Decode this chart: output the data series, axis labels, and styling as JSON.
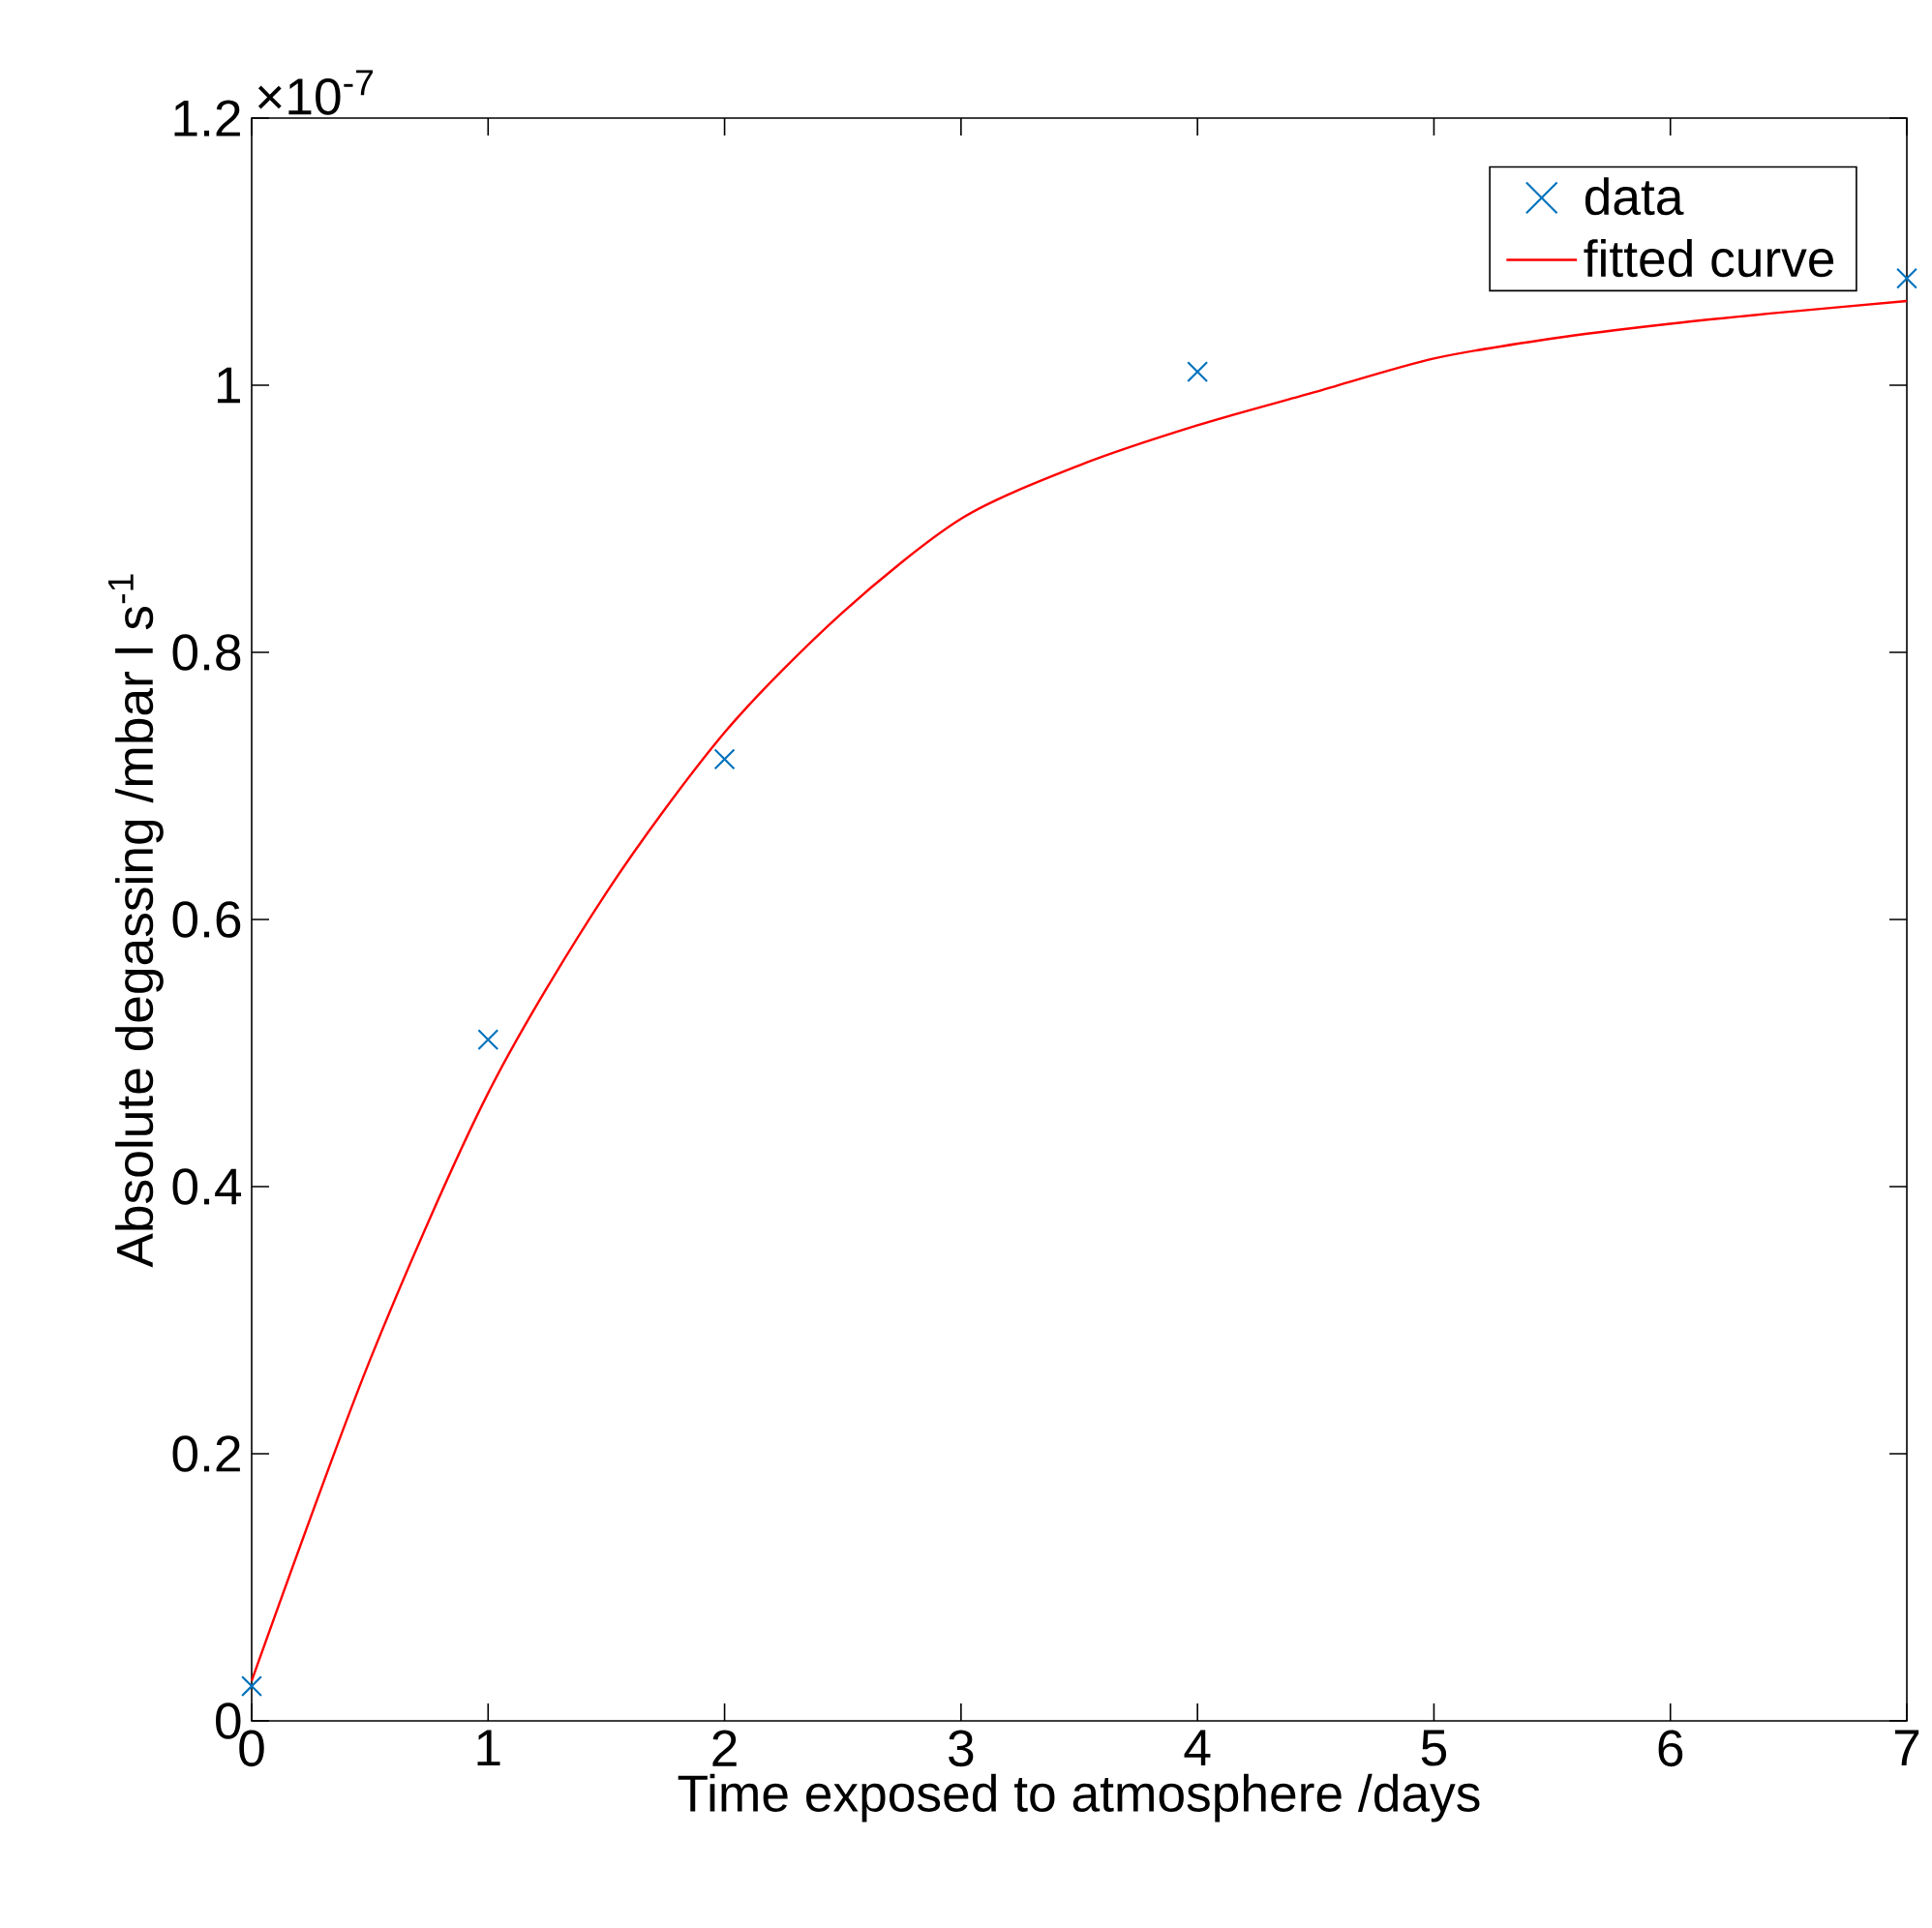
{
  "chart_data": {
    "type": "line",
    "xlabel": "Time exposed to atmosphere /days",
    "ylabel": "Absolute degassing /mbar l s$^{-1}$",
    "annotations": [
      "×10$^{-7}$"
    ],
    "xlim": [
      0,
      7
    ],
    "xticks": [
      0,
      1,
      2,
      3,
      4,
      5,
      6,
      7
    ],
    "ylim": [
      0,
      1.2
    ],
    "yticks": [
      0,
      0.2,
      0.4,
      0.6,
      0.8,
      1,
      1.2
    ],
    "legend": "top right",
    "series": [
      {
        "name": "data",
        "type": "scatter",
        "marker": "cross",
        "color": "#0072bd",
        "x": [
          0,
          1,
          2,
          4,
          7
        ],
        "values": [
          0.026,
          0.51,
          0.72,
          1.01,
          1.08
        ]
      },
      {
        "name": "fitted curve",
        "line_style": "solid",
        "color": "#ff0000",
        "x": [
          0,
          0.5,
          1,
          1.5,
          2,
          2.5,
          3,
          3.5,
          4,
          4.5,
          5,
          5.5,
          6,
          6.5,
          7
        ],
        "values": [
          0.03,
          0.27,
          0.47,
          0.62,
          0.74,
          0.83,
          0.9,
          0.94,
          0.97,
          0.995,
          1.02,
          1.035,
          1.046,
          1.055,
          1.063
        ]
      }
    ]
  }
}
